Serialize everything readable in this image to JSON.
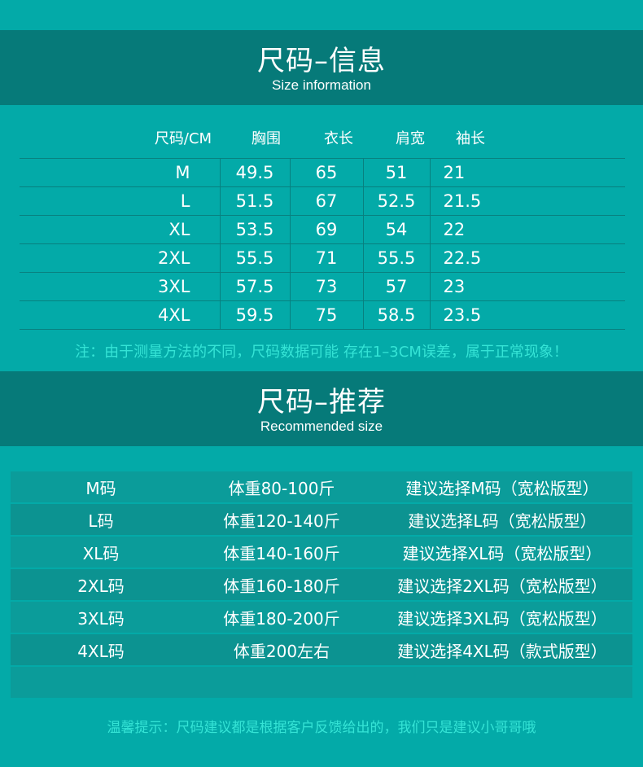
{
  "info": {
    "title": "尺码–信息",
    "subtitle": "Size information"
  },
  "headers": [
    "尺码/CM",
    "胸围",
    "衣长",
    "肩宽",
    "袖长"
  ],
  "rows": [
    [
      "M",
      "49.5",
      "65",
      "51",
      "21"
    ],
    [
      "L",
      "51.5",
      "67",
      "52.5",
      "21.5"
    ],
    [
      "XL",
      "53.5",
      "69",
      "54",
      "22"
    ],
    [
      "2XL",
      "55.5",
      "71",
      "55.5",
      "22.5"
    ],
    [
      "3XL",
      "57.5",
      "73",
      "57",
      "23"
    ],
    [
      "4XL",
      "59.5",
      "75",
      "58.5",
      "23.5"
    ]
  ],
  "note": "注：由于测量方法的不同，尺码数据可能 存在1–3CM误差，属于正常现象！",
  "recommend": {
    "title": "尺码–推荐",
    "subtitle": "Recommended size"
  },
  "rec_rows": [
    [
      "M码",
      "体重80-100斤",
      "建议选择M码（宽松版型）"
    ],
    [
      "L码",
      "体重120-140斤",
      "建议选择L码（宽松版型）"
    ],
    [
      "XL码",
      "体重140-160斤",
      "建议选择XL码（宽松版型）"
    ],
    [
      "2XL码",
      "体重160-180斤",
      "建议选择2XL码（宽松版型）"
    ],
    [
      "3XL码",
      "体重180-200斤",
      "建议选择3XL码（宽松版型）"
    ],
    [
      "4XL码",
      "体重200左右",
      "建议选择4XL码（款式版型）"
    ]
  ],
  "tip": "温馨提示：尺码建议都是根据客户反馈给出的，我们只是建议小哥哥哦",
  "colors": {
    "background": "#03aaa8",
    "band": "#067a79",
    "note": "#35e4d6"
  }
}
